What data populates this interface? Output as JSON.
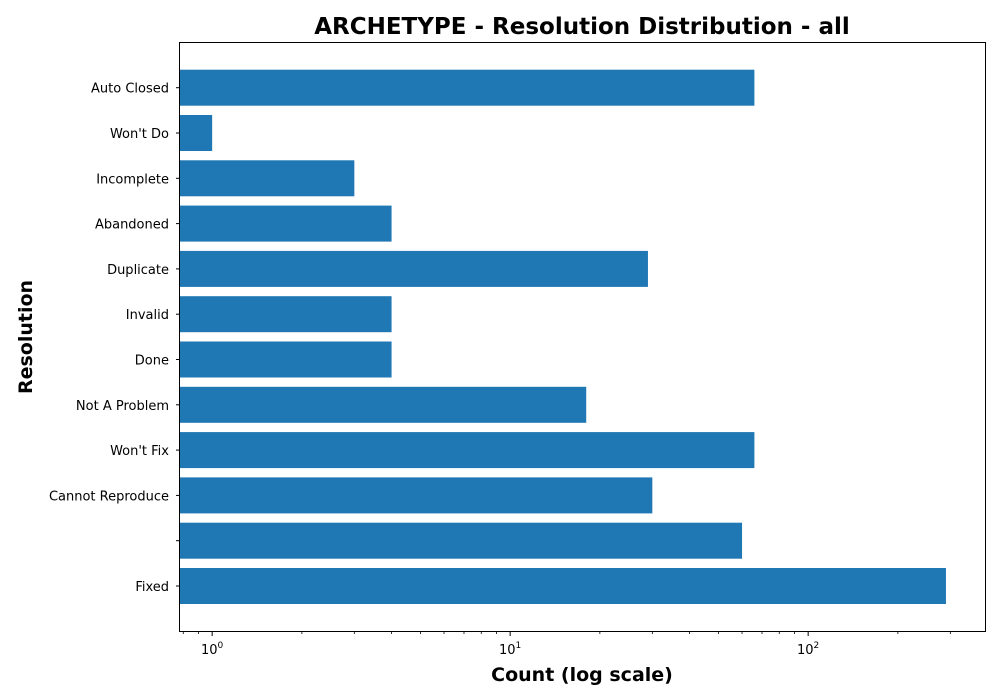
{
  "chart_data": {
    "type": "bar",
    "orientation": "horizontal",
    "title": "ARCHETYPE - Resolution Distribution - all",
    "xlabel": "Count (log scale)",
    "ylabel": "Resolution",
    "x_scale": "log",
    "xlim": [
      0.78,
      400
    ],
    "x_ticks": [
      {
        "base": "10",
        "exp": "0",
        "value": 1
      },
      {
        "base": "10",
        "exp": "1",
        "value": 10
      },
      {
        "base": "10",
        "exp": "2",
        "value": 100
      }
    ],
    "categories": [
      "Fixed",
      "",
      "Cannot Reproduce",
      "Won't Fix",
      "Not A Problem",
      "Done",
      "Invalid",
      "Duplicate",
      "Abandoned",
      "Incomplete",
      "Won't Do",
      "Auto Closed"
    ],
    "values": [
      290,
      60,
      30,
      66,
      18,
      4,
      4,
      29,
      4,
      3,
      1,
      66
    ],
    "bar_color": "#1f77b4",
    "grid": false,
    "legend": "none"
  }
}
